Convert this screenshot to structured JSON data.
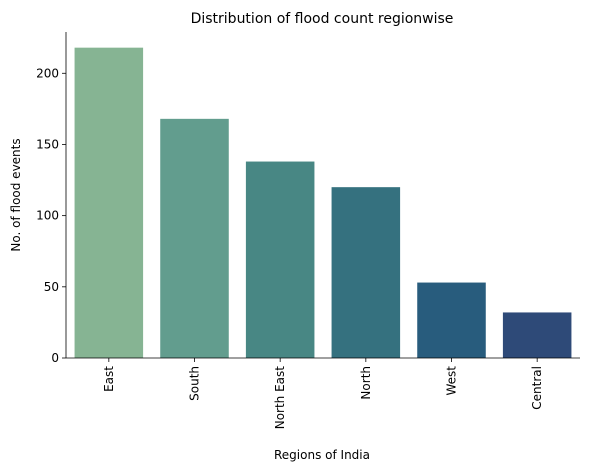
{
  "chart_data": {
    "type": "bar",
    "title": "Distribution of flood count regionwise",
    "xlabel": "Regions of India",
    "ylabel": "No. of flood events",
    "categories": [
      "East",
      "South",
      "North East",
      "North",
      "West",
      "Central"
    ],
    "values": [
      218,
      168,
      138,
      120,
      53,
      32
    ],
    "colors": [
      "#86b493",
      "#629d8e",
      "#488784",
      "#35717f",
      "#285c7d",
      "#2e4a78"
    ],
    "yticks": [
      0,
      50,
      100,
      150,
      200
    ],
    "ylim": [
      0,
      229
    ],
    "grid": false,
    "legend": "none"
  }
}
